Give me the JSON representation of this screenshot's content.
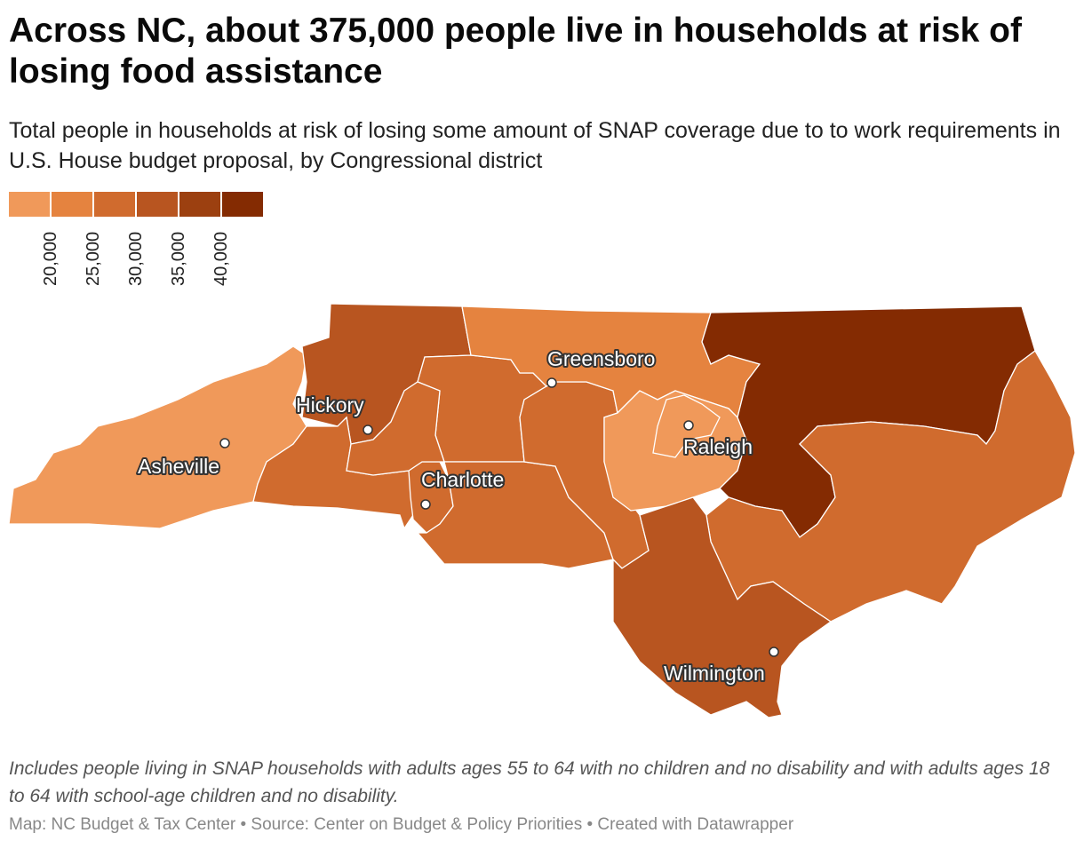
{
  "header": {
    "title": "Across NC, about 375,000 people live in households at risk of losing food assistance",
    "subtitle": "Total people in households at risk of losing some amount of SNAP coverage due to to work requirements in U.S. House budget proposal, by Congressional district"
  },
  "legend": {
    "colors": [
      "#f0995a",
      "#e5833f",
      "#d06b2e",
      "#b85520",
      "#9c4010",
      "#842b02"
    ],
    "ticks": [
      "20,000",
      "25,000",
      "30,000",
      "35,000",
      "40,000"
    ]
  },
  "map": {
    "districts": [
      {
        "name": "district-11",
        "color": "#f0995a"
      },
      {
        "name": "district-5",
        "color": "#b85520"
      },
      {
        "name": "district-10",
        "color": "#d06b2e"
      },
      {
        "name": "district-6",
        "color": "#d06b2e"
      },
      {
        "name": "district-12",
        "color": "#d06b2e"
      },
      {
        "name": "district-14",
        "color": "#d06b2e"
      },
      {
        "name": "district-8",
        "color": "#d06b2e"
      },
      {
        "name": "district-9",
        "color": "#d06b2e"
      },
      {
        "name": "district-4",
        "color": "#e5833f"
      },
      {
        "name": "district-2",
        "color": "#f0995a"
      },
      {
        "name": "district-13",
        "color": "#f0995a"
      },
      {
        "name": "district-1",
        "color": "#842b02"
      },
      {
        "name": "district-3",
        "color": "#d06b2e"
      },
      {
        "name": "district-7",
        "color": "#b85520"
      }
    ],
    "cities": [
      {
        "name": "Greensboro"
      },
      {
        "name": "Hickory"
      },
      {
        "name": "Asheville"
      },
      {
        "name": "Raleigh"
      },
      {
        "name": "Charlotte"
      },
      {
        "name": "Wilmington"
      }
    ]
  },
  "notes": "Includes people living in SNAP households with adults ages 55 to 64 with no children and no disability and with adults ages 18 to 64 with school-age children and no disability.",
  "footer": "Map: NC Budget & Tax Center • Source: Center on Budget & Policy Priorities • Created with Datawrapper"
}
